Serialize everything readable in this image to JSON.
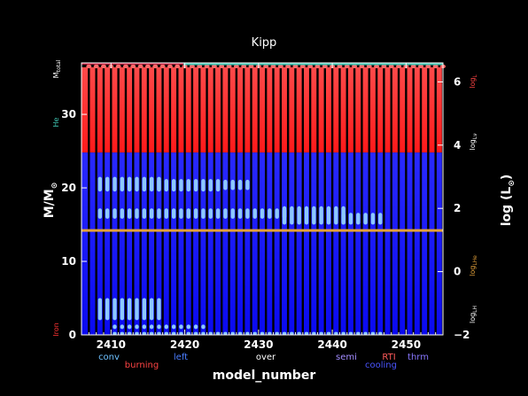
{
  "chart_data": {
    "type": "area",
    "title": "Kipp",
    "xlabel": "model_number",
    "ylabel_left": "M/M",
    "ylabel_left_sub": "⊙",
    "ylabel_right": "log (L",
    "ylabel_right_sub": "⊙",
    "ylabel_right_tail": ")",
    "xlim": [
      2406,
      2455
    ],
    "ylim_left": [
      0,
      37
    ],
    "ylim_right": [
      -2,
      6.6
    ],
    "x_ticks": [
      "2410",
      "2420",
      "2430",
      "2440",
      "2450"
    ],
    "x_tick_values": [
      2410,
      2420,
      2430,
      2440,
      2450
    ],
    "y_ticks_left": [
      "0",
      "10",
      "20",
      "30"
    ],
    "y_tick_values_left": [
      0,
      10,
      20,
      30
    ],
    "y_ticks_right": [
      "−2",
      "0",
      "2",
      "4",
      "6"
    ],
    "y_tick_values_right": [
      -2,
      0,
      2,
      4,
      6
    ],
    "colors": {
      "background": "#000000",
      "frame": "#ffffff",
      "red_region": "#ff2a2a",
      "blue_region": "#1a1aff",
      "separator": "#000000",
      "clump": "#8cc8ff",
      "orange_line": "#e3a13a",
      "mass_line": "#cc2244",
      "he_core": "#3ec6b3"
    },
    "regions": {
      "red_mass_range": [
        24.8,
        36.4
      ],
      "blue_mass_range": [
        0,
        24.8
      ],
      "separator_start": 2407,
      "separator_end": 2455,
      "separator_step": 1
    },
    "orange_line_mass": 14.2,
    "mass_line_mass": 36.9,
    "clump_bands": [
      {
        "x_range": [
          2408,
          2416
        ],
        "y": [
          19.5,
          21.5
        ]
      },
      {
        "x_range": [
          2416,
          2424
        ],
        "y": [
          19.5,
          21.2
        ]
      },
      {
        "x_range": [
          2425,
          2428
        ],
        "y": [
          19.7,
          21.1
        ]
      },
      {
        "x_range": [
          2408,
          2433
        ],
        "y": [
          15.8,
          17.2
        ]
      },
      {
        "x_range": [
          2433,
          2441
        ],
        "y": [
          15.0,
          17.5
        ]
      },
      {
        "x_range": [
          2441,
          2446
        ],
        "y": [
          15.0,
          16.6
        ]
      },
      {
        "x_range": [
          2408,
          2416
        ],
        "y": [
          2.0,
          5.0
        ]
      },
      {
        "x_range": [
          2410,
          2422
        ],
        "y": [
          0.8,
          1.4
        ]
      },
      {
        "x_range": [
          2410,
          2446
        ],
        "y": [
          0.0,
          0.4
        ]
      }
    ],
    "legend_bottom": [
      {
        "label": "conv",
        "color": "#6ec1ff"
      },
      {
        "label": "burning",
        "color": "#ff4444"
      },
      {
        "label": "left",
        "color": "#4a7dff"
      },
      {
        "label": "over",
        "color": "#ffffff"
      },
      {
        "label": "semi",
        "color": "#a38cff"
      },
      {
        "label": "RTI",
        "color": "#ff5a5a"
      },
      {
        "label": "cooling",
        "color": "#4a55ff"
      },
      {
        "label": "thrm",
        "color": "#8877ff"
      }
    ],
    "side_labels_left": [
      {
        "label": "M",
        "sub": "total",
        "color": "#ffffff"
      },
      {
        "label": "He",
        "color": "#3ec6b3"
      },
      {
        "label": "Iron",
        "color": "#ff3333"
      }
    ],
    "side_labels_right": [
      {
        "label": "log",
        "sub": "L",
        "color": "#ff4444"
      },
      {
        "label": "log",
        "sub": "Lν",
        "color": "#ffffff"
      },
      {
        "label": "log",
        "sub": "LHe",
        "color": "#e3a13a"
      },
      {
        "label": "log",
        "sub": "LH",
        "color": "#ffffff"
      }
    ]
  }
}
